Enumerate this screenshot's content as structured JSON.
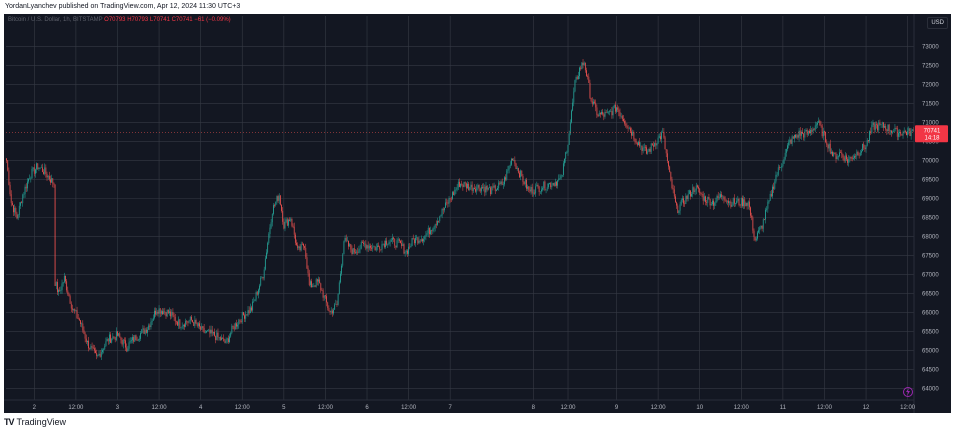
{
  "header": {
    "publisher_line": "YordanLyanchev published on TradingView.com, Apr 12, 2024 11:30 UTC+3"
  },
  "legend": {
    "symbol": "Bitcoin / U.S. Dollar, 1h, BITSTAMP",
    "o": "O70793",
    "h": "H70793",
    "l": "L70741",
    "c": "C70741",
    "chg": "−61 (−0.09%)"
  },
  "currency_label": "USD",
  "price_tag": {
    "price": "70741",
    "countdown": "14:18"
  },
  "footer": {
    "brand": "TradingView"
  },
  "colors": {
    "up": "#26a69a",
    "down": "#ef5350",
    "bg": "#131722",
    "grid": "#363a45",
    "axis_text": "#b2b5be"
  },
  "chart_data": {
    "type": "candlestick",
    "title": "",
    "xlabel": "",
    "ylabel": "",
    "ylim": [
      63700,
      73800
    ],
    "y_ticks": [
      64000,
      64500,
      65000,
      65500,
      66000,
      66500,
      67000,
      67500,
      68000,
      68500,
      69000,
      69500,
      70000,
      70500,
      71000,
      71500,
      72000,
      72500,
      73000
    ],
    "x_ticks": [
      "2",
      "12:00",
      "3",
      "12:00",
      "4",
      "12:00",
      "5",
      "12:00",
      "6",
      "12:00",
      "7",
      "8",
      "12:00",
      "9",
      "12:00",
      "10",
      "12:00",
      "11",
      "12:00",
      "12",
      "12:00"
    ],
    "x_tick_index": [
      24,
      60,
      96,
      132,
      168,
      204,
      240,
      276,
      312,
      348,
      384,
      456,
      486,
      528,
      564,
      600,
      636,
      672,
      708,
      744,
      780
    ],
    "n_candles": 786,
    "close_anchors": [
      [
        0,
        70000
      ],
      [
        4,
        68900
      ],
      [
        9,
        68500
      ],
      [
        14,
        69100
      ],
      [
        20,
        69600
      ],
      [
        27,
        69850
      ],
      [
        33,
        69700
      ],
      [
        38,
        69500
      ],
      [
        41,
        69400
      ],
      [
        42,
        66800
      ],
      [
        45,
        66500
      ],
      [
        50,
        66900
      ],
      [
        57,
        66100
      ],
      [
        63,
        65800
      ],
      [
        70,
        65200
      ],
      [
        78,
        64800
      ],
      [
        88,
        65300
      ],
      [
        96,
        65400
      ],
      [
        104,
        65100
      ],
      [
        110,
        65300
      ],
      [
        122,
        65600
      ],
      [
        130,
        66100
      ],
      [
        140,
        66000
      ],
      [
        150,
        65700
      ],
      [
        160,
        65800
      ],
      [
        170,
        65500
      ],
      [
        180,
        65400
      ],
      [
        190,
        65200
      ],
      [
        196,
        65600
      ],
      [
        204,
        65900
      ],
      [
        212,
        66100
      ],
      [
        222,
        67000
      ],
      [
        230,
        68700
      ],
      [
        236,
        69100
      ],
      [
        240,
        68300
      ],
      [
        246,
        68500
      ],
      [
        252,
        67600
      ],
      [
        258,
        67800
      ],
      [
        262,
        66700
      ],
      [
        270,
        66800
      ],
      [
        280,
        66000
      ],
      [
        286,
        66200
      ],
      [
        292,
        67900
      ],
      [
        300,
        67600
      ],
      [
        310,
        67800
      ],
      [
        320,
        67700
      ],
      [
        330,
        67900
      ],
      [
        340,
        67800
      ],
      [
        346,
        67600
      ],
      [
        352,
        67900
      ],
      [
        362,
        68000
      ],
      [
        372,
        68400
      ],
      [
        382,
        68900
      ],
      [
        388,
        69200
      ],
      [
        392,
        69400
      ],
      [
        402,
        69300
      ],
      [
        412,
        69300
      ],
      [
        420,
        69200
      ],
      [
        430,
        69400
      ],
      [
        438,
        70100
      ],
      [
        442,
        69800
      ],
      [
        452,
        69200
      ],
      [
        462,
        69300
      ],
      [
        472,
        69400
      ],
      [
        480,
        69500
      ],
      [
        486,
        70500
      ],
      [
        492,
        72000
      ],
      [
        496,
        72400
      ],
      [
        500,
        72600
      ],
      [
        506,
        71600
      ],
      [
        512,
        71200
      ],
      [
        520,
        71200
      ],
      [
        528,
        71400
      ],
      [
        538,
        70900
      ],
      [
        546,
        70500
      ],
      [
        554,
        70200
      ],
      [
        562,
        70500
      ],
      [
        568,
        70700
      ],
      [
        574,
        69600
      ],
      [
        580,
        68700
      ],
      [
        588,
        69000
      ],
      [
        596,
        69300
      ],
      [
        604,
        69000
      ],
      [
        612,
        68900
      ],
      [
        620,
        69100
      ],
      [
        626,
        68900
      ],
      [
        634,
        68900
      ],
      [
        642,
        68900
      ],
      [
        648,
        67900
      ],
      [
        654,
        68300
      ],
      [
        660,
        68900
      ],
      [
        666,
        69600
      ],
      [
        672,
        70000
      ],
      [
        678,
        70500
      ],
      [
        686,
        70700
      ],
      [
        694,
        70700
      ],
      [
        702,
        71000
      ],
      [
        710,
        70500
      ],
      [
        716,
        70100
      ],
      [
        722,
        70200
      ],
      [
        728,
        70000
      ],
      [
        736,
        70200
      ],
      [
        744,
        70400
      ],
      [
        750,
        70900
      ],
      [
        760,
        70900
      ],
      [
        770,
        70741
      ],
      [
        785,
        70741
      ]
    ]
  }
}
